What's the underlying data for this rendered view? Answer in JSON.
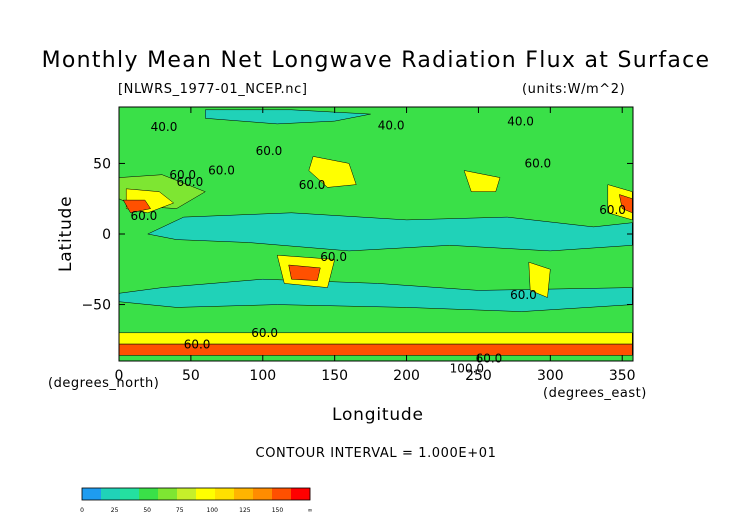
{
  "header": {
    "title": "Monthly Mean Net Longwave Radiation Flux at Surface",
    "file": "[NLWRS_1977-01_NCEP.nc]",
    "units": "(units:W/m^2)"
  },
  "footer": {
    "contour_interval": "CONTOUR INTERVAL = 1.000E+01"
  },
  "chart_data": {
    "type": "heatmap",
    "title": "Monthly Mean Net Longwave Radiation Flux at Surface",
    "xlabel": "Longitude",
    "ylabel": "Latitude",
    "x_unit": "(degrees_east)",
    "y_unit": "(degrees_north)",
    "xlim": [
      0,
      357.5
    ],
    "ylim": [
      -90,
      90
    ],
    "x_ticks": [
      0,
      50,
      100,
      150,
      200,
      250,
      300,
      350
    ],
    "y_ticks": [
      50,
      0,
      -50
    ],
    "contour_labels": [
      {
        "text": "40.0",
        "lon": 22,
        "lat": 73
      },
      {
        "text": "60.0",
        "lon": 95,
        "lat": 56
      },
      {
        "text": "60.0",
        "lon": 35,
        "lat": 39
      },
      {
        "text": "60.0",
        "lon": 62,
        "lat": 42
      },
      {
        "text": "60.0",
        "lon": 40,
        "lat": 34
      },
      {
        "text": "60.0",
        "lon": 125,
        "lat": 32
      },
      {
        "text": "40.0",
        "lon": 180,
        "lat": 74
      },
      {
        "text": "40.0",
        "lon": 270,
        "lat": 77
      },
      {
        "text": "60.0",
        "lon": 282,
        "lat": 47
      },
      {
        "text": "60.0",
        "lon": 334,
        "lat": 14
      },
      {
        "text": "60.0",
        "lon": 8,
        "lat": 10
      },
      {
        "text": "60.0",
        "lon": 140,
        "lat": -19
      },
      {
        "text": "60.0",
        "lon": 272,
        "lat": -46
      },
      {
        "text": "60.0",
        "lon": 92,
        "lat": -73
      },
      {
        "text": "60.0",
        "lon": 45,
        "lat": -81
      },
      {
        "text": "100.0",
        "lon": 230,
        "lat": -98
      },
      {
        "text": "60.0",
        "lon": 248,
        "lat": -91
      }
    ],
    "colorbar": {
      "levels": [
        "0",
        "25",
        "50",
        "75",
        "100",
        "125",
        "150",
        "∞"
      ],
      "colors": [
        "#1e9cf0",
        "#20d2b8",
        "#24e0a0",
        "#3ae048",
        "#7ee632",
        "#c6ef2a",
        "#ffff00",
        "#ffe000",
        "#ffb400",
        "#ff8c00",
        "#ff5000",
        "#ff0000"
      ]
    },
    "fields": {
      "background_value_colors": {
        "mid_lat": "#3ae048",
        "tropics": "#20d2b8",
        "subtropics": "#7ee632",
        "deserts": "#ffff00",
        "hot_spots": "#ff5000"
      }
    }
  }
}
